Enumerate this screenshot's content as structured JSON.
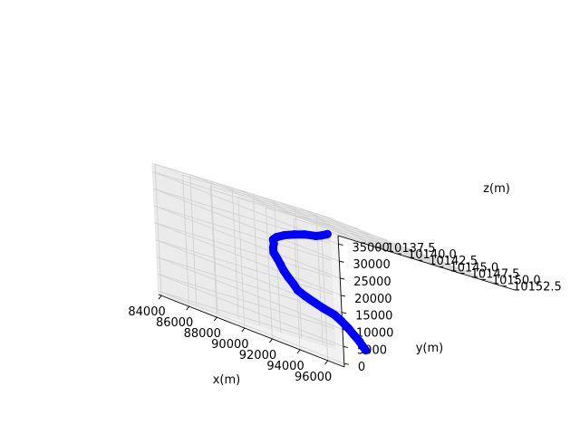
{
  "chart_data": {
    "type": "line",
    "projection": "3d",
    "title": "",
    "xlabel": "x(m)",
    "ylabel": "y(m)",
    "zlabel": "z(m)",
    "xlim": [
      83800,
      97200
    ],
    "ylim": [
      -1000,
      37500
    ],
    "zlim": [
      10133,
      10154
    ],
    "xticks": [
      "84000",
      "86000",
      "88000",
      "90000",
      "92000",
      "94000",
      "96000"
    ],
    "xtick_values": [
      84000,
      86000,
      88000,
      90000,
      92000,
      94000,
      96000
    ],
    "yticks": [
      "0",
      "5000",
      "10000",
      "15000",
      "20000",
      "25000",
      "30000",
      "35000"
    ],
    "ytick_values": [
      0,
      5000,
      10000,
      15000,
      20000,
      25000,
      30000,
      35000
    ],
    "zticks": [
      "10137.5",
      "10140.0",
      "10142.5",
      "10145.0",
      "10147.5",
      "10150.0",
      "10152.5"
    ],
    "ztick_values": [
      10137.5,
      10140,
      10142.5,
      10145,
      10147.5,
      10150,
      10152.5
    ],
    "grid": true,
    "series": [
      {
        "color": "#0000ff",
        "marker": "circle",
        "x": [
          88500,
          88200,
          87900,
          87200,
          86500,
          85800,
          85300,
          85100,
          85200,
          85500,
          86000,
          86800,
          87500,
          88200,
          89000,
          89800,
          90500,
          91200,
          92000,
          92700,
          93000,
          93300,
          93800,
          94300,
          94800,
          95200,
          95600
        ],
        "y": [
          34000,
          33000,
          32200,
          31400,
          30200,
          28800,
          27400,
          26300,
          25200,
          24000,
          22800,
          21600,
          20400,
          19100,
          17800,
          16500,
          15300,
          14500,
          13700,
          13000,
          12200,
          11100,
          9700,
          8400,
          7200,
          6200,
          5400
        ],
        "z": [
          10146.0,
          10145.8,
          10145.6,
          10145.4,
          10145.3,
          10145.2,
          10145.1,
          10145.0,
          10144.9,
          10144.3,
          10143.5,
          10142.6,
          10141.8,
          10141.0,
          10140.2,
          10139.5,
          10138.8,
          10138.5,
          10138.3,
          10138.2,
          10139.0,
          10139.3,
          10139.3,
          10139.1,
          10138.9,
          10138.6,
          10138.3
        ]
      }
    ]
  }
}
